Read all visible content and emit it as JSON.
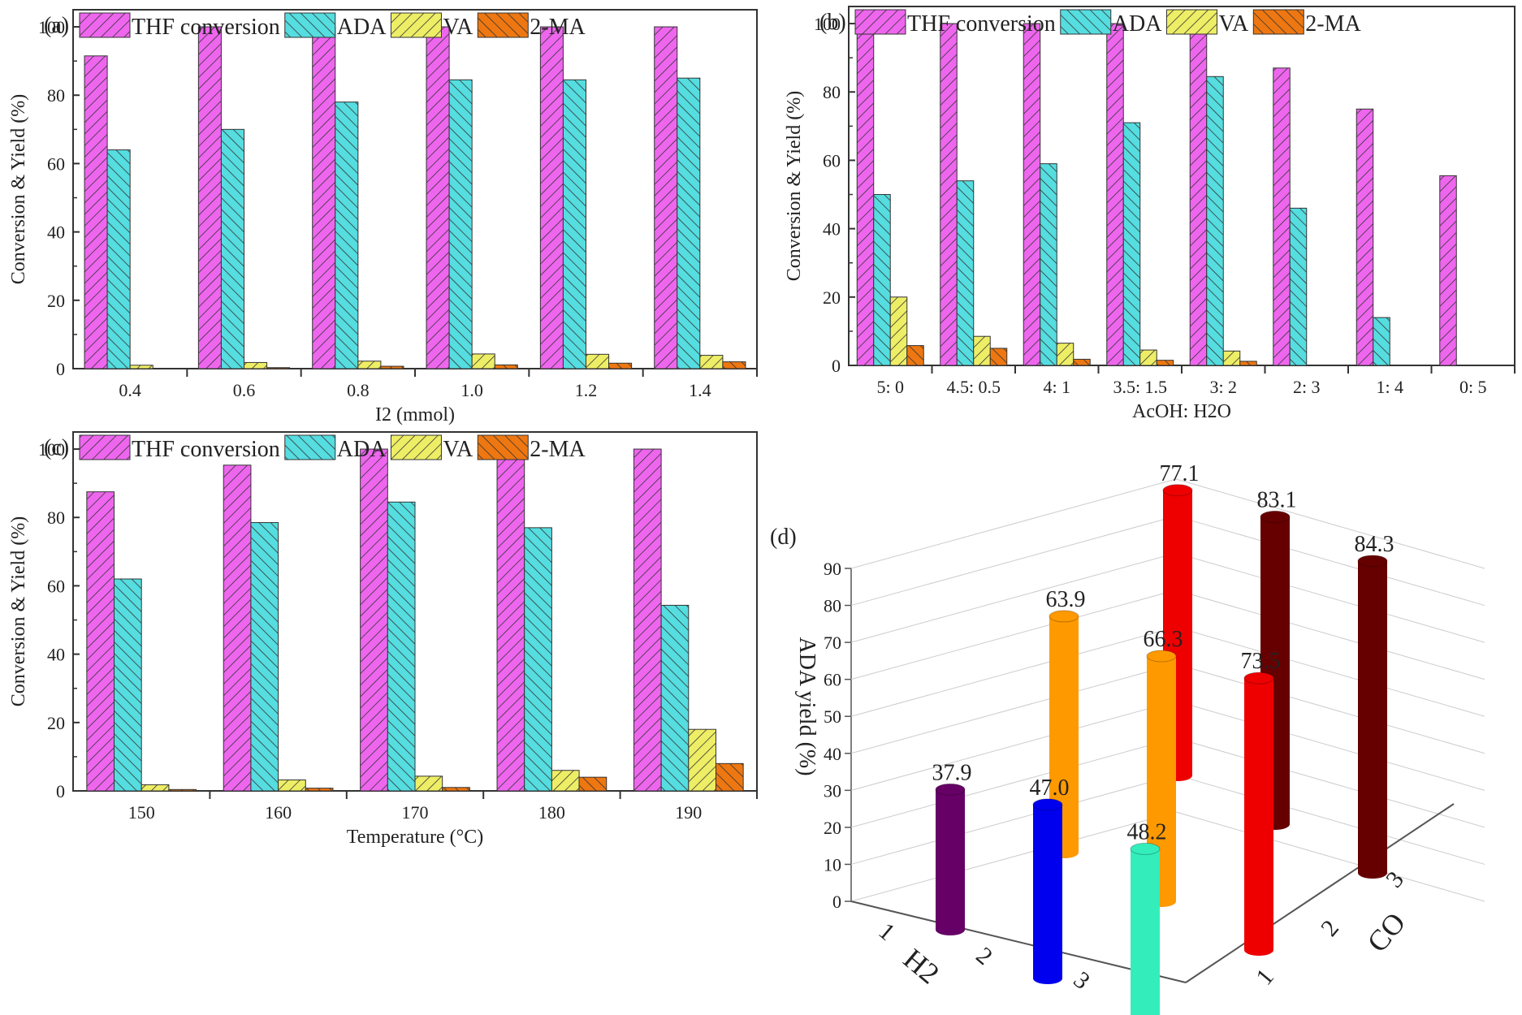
{
  "colors": {
    "THF conversion": "#ee66ee",
    "ADA": "#55dde0",
    "VA": "#eeee66",
    "2-MA": "#ee7711"
  },
  "chart_data": [
    {
      "type": "bar",
      "panel": "(a)",
      "categories": [
        "0.4",
        "0.6",
        "0.8",
        "1.0",
        "1.2",
        "1.4"
      ],
      "xlabel": "I2 (mmol)",
      "ylabel": "Conversion & Yield (%)",
      "ylim": [
        0,
        105
      ],
      "yticks": [
        0,
        20,
        40,
        60,
        80,
        100
      ],
      "legend": "top",
      "series": [
        {
          "name": "THF conversion",
          "values": [
            91.5,
            100,
            100,
            100,
            100,
            100
          ]
        },
        {
          "name": "ADA",
          "values": [
            64,
            70,
            78,
            84.5,
            84.5,
            85
          ]
        },
        {
          "name": "VA",
          "values": [
            1,
            1.8,
            2.2,
            4.3,
            4.2,
            3.9
          ]
        },
        {
          "name": "2-MA",
          "values": [
            0,
            0.3,
            0.7,
            1.1,
            1.6,
            2.0
          ]
        }
      ]
    },
    {
      "type": "bar",
      "panel": "(b)",
      "categories": [
        "5: 0",
        "4.5: 0.5",
        "4: 1",
        "3.5: 1.5",
        "3: 2",
        "2: 3",
        "1: 4",
        "0: 5"
      ],
      "xlabel": "AcOH: H2O",
      "ylabel": "Conversion & Yield (%)",
      "ylim": [
        0,
        105
      ],
      "yticks": [
        0,
        20,
        40,
        60,
        80,
        100
      ],
      "legend": "top",
      "series": [
        {
          "name": "THF conversion",
          "values": [
            100,
            100,
            100,
            100,
            100,
            87,
            75,
            55.5
          ]
        },
        {
          "name": "ADA",
          "values": [
            50,
            54,
            59,
            71,
            84.5,
            46,
            14,
            0
          ]
        },
        {
          "name": "VA",
          "values": [
            20,
            8.5,
            6.5,
            4.5,
            4.2,
            0,
            0,
            0
          ]
        },
        {
          "name": "2-MA",
          "values": [
            5.8,
            5,
            1.8,
            1.5,
            1.2,
            0,
            0,
            0
          ]
        }
      ]
    },
    {
      "type": "bar",
      "panel": "(c)",
      "categories": [
        "150",
        "160",
        "170",
        "180",
        "190"
      ],
      "xlabel": "Temperature (°C)",
      "ylabel": "Conversion & Yield (%)",
      "ylim": [
        0,
        105
      ],
      "yticks": [
        0,
        20,
        40,
        60,
        80,
        100
      ],
      "legend": "top",
      "series": [
        {
          "name": "THF conversion",
          "values": [
            87.5,
            95.3,
            100,
            100,
            100
          ]
        },
        {
          "name": "ADA",
          "values": [
            62,
            78.5,
            84.5,
            77,
            54.3
          ]
        },
        {
          "name": "VA",
          "values": [
            1.8,
            3.2,
            4.3,
            6,
            18
          ]
        },
        {
          "name": "2-MA",
          "values": [
            0.4,
            0.8,
            1,
            4,
            8
          ]
        }
      ]
    },
    {
      "type": "bar3d",
      "panel": "(d)",
      "xlabel": "H2",
      "ylabel": "CO",
      "zlabel": "ADA yield (%)",
      "zlim": [
        0,
        90
      ],
      "zticks": [
        0,
        10,
        20,
        30,
        40,
        50,
        60,
        70,
        80,
        90
      ],
      "xticks": [
        "1",
        "2",
        "3"
      ],
      "yticks": [
        "1",
        "2",
        "3"
      ],
      "points": [
        {
          "h2": 1,
          "co": 1,
          "value": 37.9,
          "color": "#660066"
        },
        {
          "h2": 1,
          "co": 2,
          "value": 63.9,
          "color": "#ff9900"
        },
        {
          "h2": 1,
          "co": 3,
          "value": 77.1,
          "color": "#ee0000"
        },
        {
          "h2": 2,
          "co": 1,
          "value": 47.0,
          "color": "#0000ee"
        },
        {
          "h2": 2,
          "co": 2,
          "value": 66.3,
          "color": "#ff9900"
        },
        {
          "h2": 2,
          "co": 3,
          "value": 83.1,
          "color": "#660000"
        },
        {
          "h2": 3,
          "co": 1,
          "value": 48.2,
          "color": "#33eebb"
        },
        {
          "h2": 3,
          "co": 2,
          "value": 73.5,
          "color": "#ee0000"
        },
        {
          "h2": 3,
          "co": 3,
          "value": 84.3,
          "color": "#660000"
        }
      ]
    }
  ]
}
